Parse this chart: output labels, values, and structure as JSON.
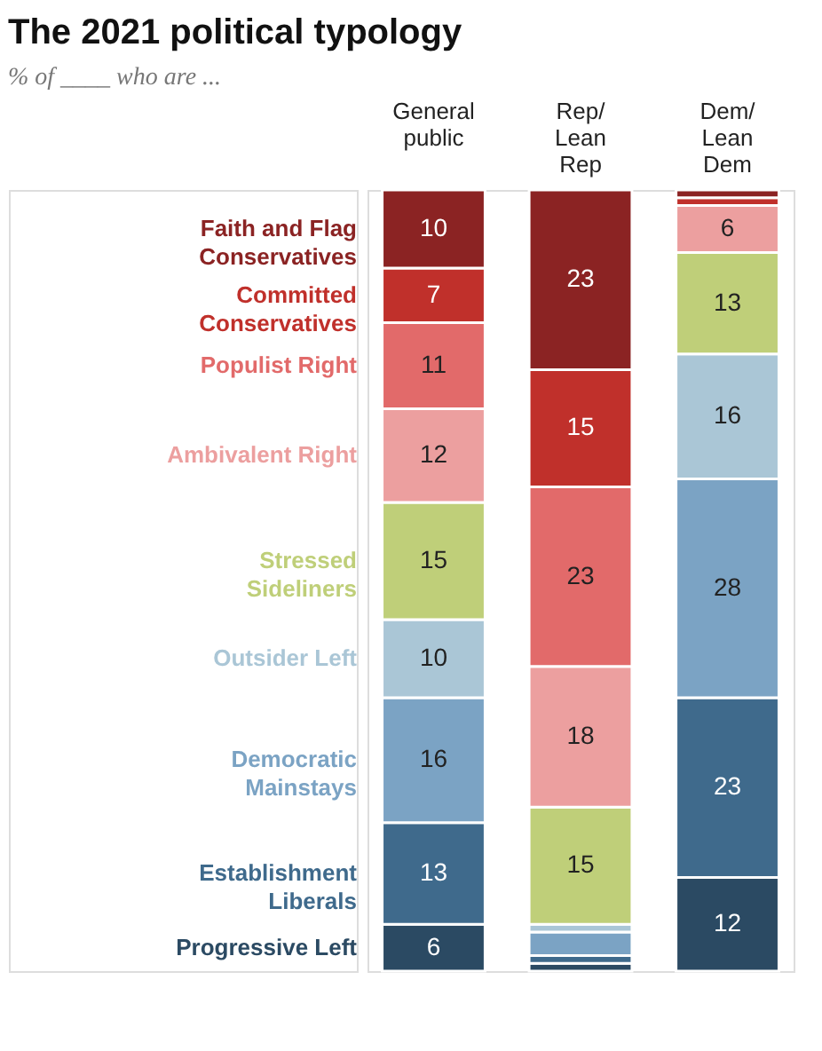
{
  "chart_data": {
    "type": "bar",
    "stacked": true,
    "title": "The 2021 political typology",
    "subtitle": "% of ____ who are ...",
    "categories": [
      "General public",
      "Rep/Lean Rep",
      "Dem/Lean Dem"
    ],
    "series": [
      {
        "name": "Progressive Left",
        "color": "#2b4a63",
        "values": [
          6,
          1,
          12
        ],
        "value_labels": [
          "6",
          null,
          "12"
        ]
      },
      {
        "name": "Establishment Liberals",
        "color": "#3f6a8c",
        "values": [
          13,
          1,
          23
        ],
        "value_labels": [
          "13",
          null,
          "23"
        ]
      },
      {
        "name": "Democratic Mainstays",
        "color": "#7ba3c4",
        "values": [
          16,
          3,
          28
        ],
        "value_labels": [
          "16",
          null,
          "28"
        ]
      },
      {
        "name": "Outsider Left",
        "color": "#aac6d6",
        "values": [
          10,
          1,
          16
        ],
        "value_labels": [
          "10",
          null,
          "16"
        ]
      },
      {
        "name": "Stressed Sideliners",
        "color": "#bfcf79",
        "values": [
          15,
          15,
          13
        ],
        "value_labels": [
          "15",
          "15",
          "13"
        ]
      },
      {
        "name": "Ambivalent Right",
        "color": "#ec9f9f",
        "values": [
          12,
          18,
          6
        ],
        "value_labels": [
          "12",
          "18",
          "6"
        ]
      },
      {
        "name": "Populist Right",
        "color": "#e26a6a",
        "values": [
          11,
          23,
          null
        ],
        "value_labels": [
          "11",
          "23",
          null
        ]
      },
      {
        "name": "Committed Conservatives",
        "color": "#c0302b",
        "values": [
          7,
          15,
          1
        ],
        "value_labels": [
          "7",
          "15",
          null
        ]
      },
      {
        "name": "Faith and Flag Conservatives",
        "color": "#8b2323",
        "values": [
          10,
          23,
          1
        ],
        "value_labels": [
          "10",
          "23",
          null
        ]
      }
    ]
  }
}
